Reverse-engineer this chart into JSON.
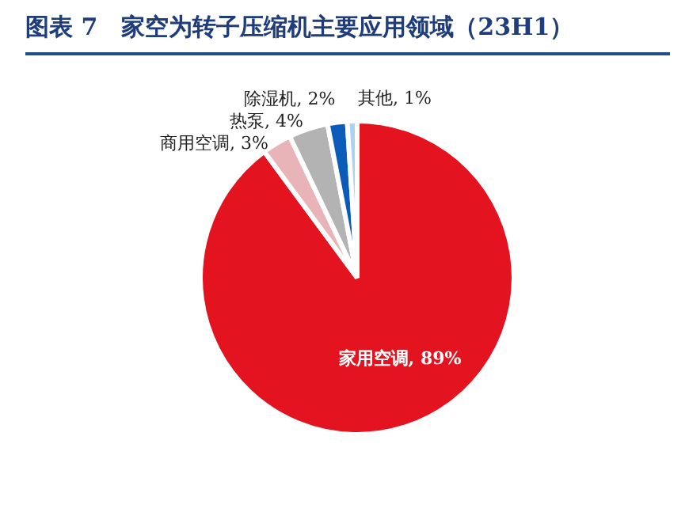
{
  "chart_data": {
    "type": "pie",
    "title": "图表 7　家空为转子压缩机主要应用领域（23H1）",
    "categories": [
      "家用空调",
      "商用空调",
      "热泵",
      "除湿机",
      "其他"
    ],
    "values": [
      89,
      3,
      4,
      2,
      1
    ],
    "colors": [
      "#e3141f",
      "#e8b4b8",
      "#b3b3b3",
      "#0a5cb8",
      "#a9d3ee"
    ],
    "value_labels": [
      "89%",
      "3%",
      "4%",
      "2%",
      "1%"
    ],
    "legend": false
  }
}
